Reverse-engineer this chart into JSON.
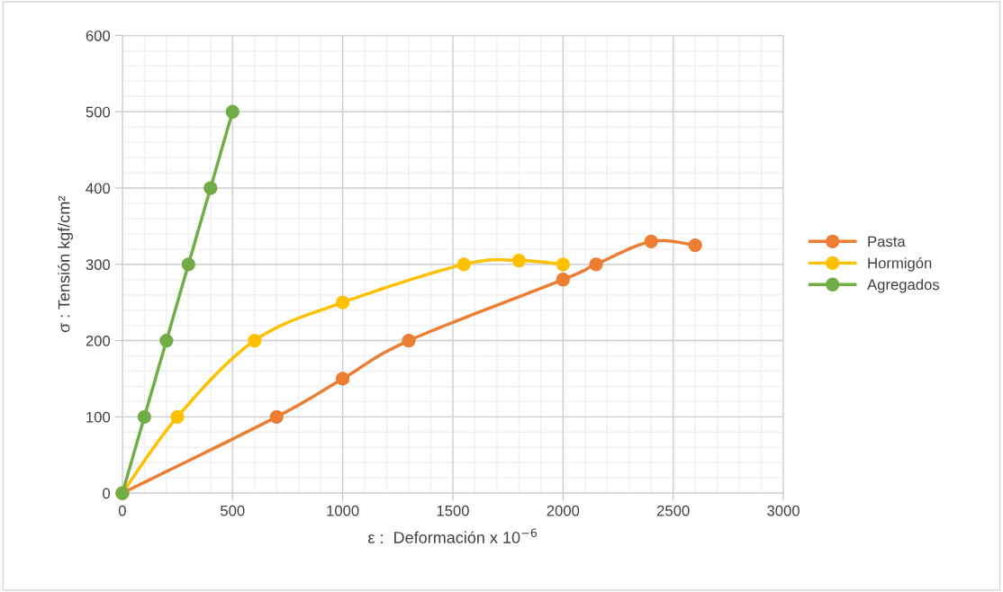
{
  "chart_data": {
    "type": "line",
    "xlabel": "ε :  Deformación x 10$^{−6}$",
    "ylabel": "σ : Tensión kgf/cm²",
    "xlim": [
      0,
      3000
    ],
    "xticks": [
      0,
      500,
      1000,
      1500,
      2000,
      2500,
      3000
    ],
    "ylim": [
      0,
      600
    ],
    "yticks": [
      0,
      100,
      200,
      300,
      400,
      500,
      600
    ],
    "grid": true,
    "legend": "right",
    "marker": "circle",
    "line_style": "solid",
    "series": [
      {
        "name": "Pasta",
        "color": "#ed7d31",
        "x": [
          0,
          700,
          1000,
          1300,
          2000,
          2150,
          2400,
          2600
        ],
        "values": [
          0,
          100,
          150,
          200,
          280,
          300,
          330,
          325
        ]
      },
      {
        "name": "Hormigón",
        "color": "#ffc000",
        "x": [
          0,
          250,
          600,
          1000,
          1550,
          1800,
          2000
        ],
        "values": [
          0,
          100,
          200,
          250,
          300,
          305,
          300
        ]
      },
      {
        "name": "Agregados",
        "color": "#70ad47",
        "x": [
          0,
          100,
          200,
          300,
          400,
          500
        ],
        "values": [
          0,
          100,
          200,
          300,
          400,
          500
        ]
      }
    ]
  }
}
